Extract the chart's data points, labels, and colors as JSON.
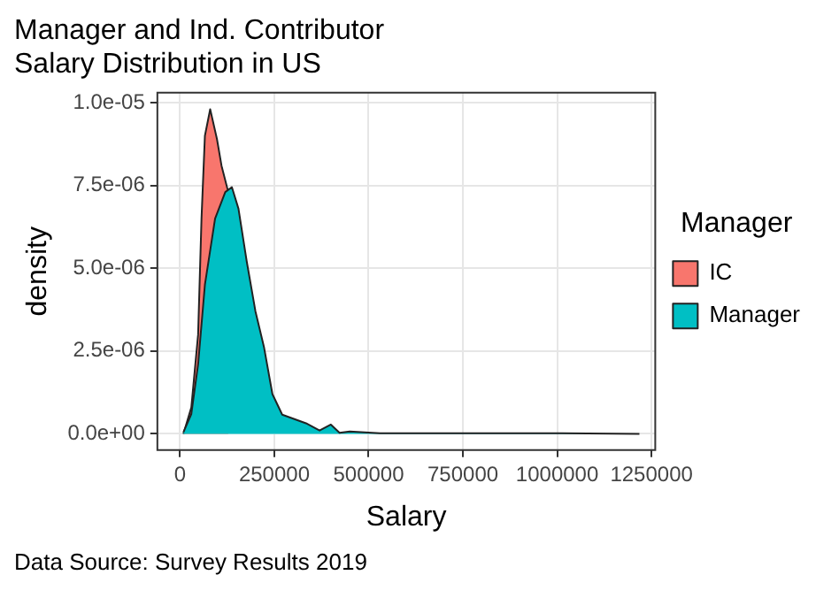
{
  "chart_data": {
    "type": "area",
    "title": "Manager and Ind. Contributor\nSalary Distribution in US",
    "xlabel": "Salary",
    "ylabel": "density",
    "legend_title": "Manager",
    "legend": "right",
    "grid": true,
    "xlim": [
      -60000,
      1260000
    ],
    "xticks": [
      0,
      250000,
      500000,
      750000,
      1000000,
      1250000
    ],
    "ylim": [
      -4.9e-07,
      1.03e-05
    ],
    "yticks": [
      {
        "value": 0,
        "label": "0.0e+00"
      },
      {
        "value": 2.5e-06,
        "label": "2.5e-06"
      },
      {
        "value": 5e-06,
        "label": "5.0e-06"
      },
      {
        "value": 7.5e-06,
        "label": "7.5e-06"
      },
      {
        "value": 1e-05,
        "label": "1.0e-05"
      }
    ],
    "series": [
      {
        "name": "IC",
        "color": "#f8766d",
        "x": [
          9000,
          30000,
          48000,
          57000,
          66000,
          80000,
          98000,
          110000,
          128000
        ],
        "values": [
          0,
          8e-07,
          3e-06,
          6.5e-06,
          9e-06,
          9.8e-06,
          8.9e-06,
          8.1e-06,
          7.3e-06
        ]
      },
      {
        "name": "Manager",
        "color": "#00bfc4",
        "x": [
          9000,
          30000,
          48000,
          66000,
          93000,
          120000,
          137500,
          155000,
          177000,
          200000,
          223000,
          245000,
          271000,
          334000,
          370000,
          400000,
          423000,
          450000,
          530000,
          709000,
          1012000,
          1218000
        ],
        "values": [
          5e-08,
          6e-07,
          2.1e-06,
          4.5e-06,
          6.5e-06,
          7.3e-06,
          7.45e-06,
          6.8e-06,
          5.2e-06,
          3.7e-06,
          2.6e-06,
          1.2e-06,
          5.8e-07,
          3.2e-07,
          1e-07,
          2.8e-07,
          3e-08,
          7e-08,
          2e-08,
          2e-08,
          2e-08,
          0
        ]
      }
    ],
    "annotations": [
      "Data Source: Survey Results 2019"
    ]
  }
}
